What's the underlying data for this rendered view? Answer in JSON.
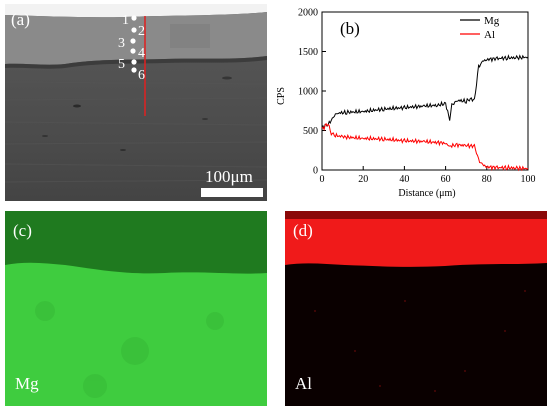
{
  "panels": {
    "a": {
      "label": "(a)",
      "point_labels": [
        "1",
        "2",
        "3",
        "4",
        "5",
        "6"
      ],
      "scale_bar": "100μm",
      "colors": {
        "line_scan": "#e02020",
        "marker": "#ffffff"
      }
    },
    "b": {
      "label": "(b)"
    },
    "c": {
      "label": "(c)",
      "element": "Mg",
      "color": "#3fcc3f"
    },
    "d": {
      "label": "(d)",
      "element": "Al",
      "color": "#f01a1a"
    }
  },
  "chart_data": {
    "type": "line",
    "xlabel": "Distance (μm)",
    "ylabel": "CPS",
    "xlim": [
      0,
      100
    ],
    "ylim": [
      0,
      2000
    ],
    "xticks": [
      0,
      20,
      40,
      60,
      80,
      100
    ],
    "yticks": [
      0,
      500,
      1000,
      1500,
      2000
    ],
    "legend_position": "top-right",
    "series": [
      {
        "name": "Mg",
        "color": "#000000",
        "x": [
          0,
          3,
          5,
          6,
          8,
          12,
          20,
          30,
          40,
          50,
          56,
          60,
          62,
          63,
          64,
          66,
          70,
          72,
          74,
          75,
          76,
          78,
          80,
          85,
          90,
          95,
          100
        ],
        "y": [
          540,
          580,
          640,
          700,
          720,
          730,
          740,
          770,
          790,
          810,
          820,
          840,
          640,
          820,
          850,
          880,
          870,
          900,
          880,
          1100,
          1300,
          1380,
          1400,
          1410,
          1420,
          1420,
          1430
        ]
      },
      {
        "name": "Al",
        "color": "#ff0000",
        "x": [
          0,
          2,
          3,
          4,
          6,
          10,
          20,
          30,
          40,
          50,
          60,
          62,
          65,
          70,
          74,
          75,
          76,
          78,
          80,
          85,
          90,
          95,
          100
        ],
        "y": [
          520,
          560,
          600,
          480,
          440,
          420,
          400,
          390,
          370,
          360,
          340,
          300,
          320,
          310,
          300,
          230,
          120,
          70,
          40,
          30,
          30,
          20,
          20
        ]
      }
    ]
  }
}
